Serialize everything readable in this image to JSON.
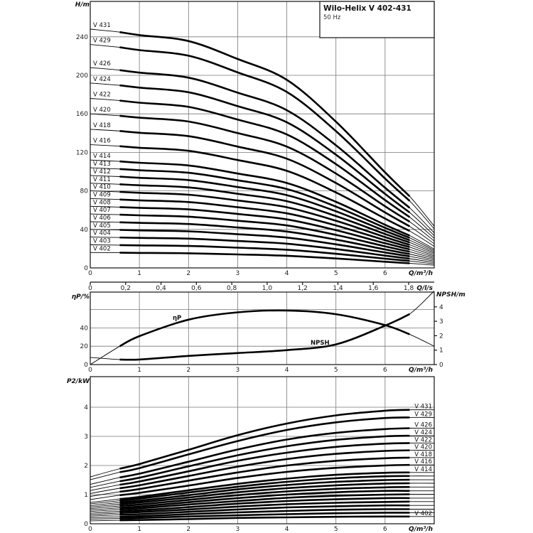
{
  "title": "Wilo-Helix V 402-431",
  "subtitle": "50 Hz",
  "chart_data": [
    {
      "type": "line",
      "ylabel": "H/m",
      "xlabel": "Q/m³/h",
      "xlabel2": "Q/l/s",
      "xlim": [
        0,
        7
      ],
      "ylim": [
        0,
        278
      ],
      "yticks": [
        0,
        40,
        80,
        120,
        160,
        200,
        240
      ],
      "xticks": [
        0,
        1,
        2,
        3,
        4,
        5,
        6
      ],
      "xticks2": [
        "0",
        "0,2",
        "0,4",
        "0,6",
        "0,8",
        "1,0",
        "1,2",
        "1,4",
        "1,6",
        "1,8"
      ],
      "xticks2_values": [
        0,
        0.2,
        0.4,
        0.6,
        0.8,
        1.0,
        1.2,
        1.4,
        1.6,
        1.8
      ],
      "grid": true,
      "operating_range": [
        0.6,
        6.5
      ],
      "x": [
        0,
        0.6,
        1,
        2,
        3,
        4,
        5,
        6,
        6.5,
        7
      ],
      "series": [
        {
          "name": "V 402",
          "values": [
            16,
            15.8,
            15.6,
            15.2,
            14,
            12.6,
            9.8,
            6.4,
            4.8,
            2.8
          ]
        },
        {
          "name": "V 403",
          "values": [
            24,
            23.7,
            23.4,
            22.8,
            21,
            18.9,
            14.7,
            9.6,
            7.2,
            4.2
          ]
        },
        {
          "name": "V 404",
          "values": [
            32,
            31.6,
            31.2,
            30.4,
            28,
            25.2,
            19.6,
            12.8,
            9.6,
            5.6
          ]
        },
        {
          "name": "V 405",
          "values": [
            40,
            39.5,
            39,
            38,
            35,
            31.5,
            24.5,
            16,
            12,
            7
          ]
        },
        {
          "name": "V 406",
          "values": [
            48,
            47.4,
            46.8,
            45.6,
            42,
            37.8,
            29.4,
            19.2,
            14.4,
            8.4
          ]
        },
        {
          "name": "V 407",
          "values": [
            56,
            55.3,
            54.6,
            53.2,
            49,
            44.1,
            34.3,
            22.4,
            16.8,
            9.8
          ]
        },
        {
          "name": "V 408",
          "values": [
            64,
            63.2,
            62.4,
            60.8,
            56,
            50.4,
            39.2,
            25.6,
            19.2,
            11.2
          ]
        },
        {
          "name": "V 409",
          "values": [
            72,
            71.1,
            70.2,
            68.4,
            63,
            56.7,
            44.1,
            28.8,
            21.6,
            12.6
          ]
        },
        {
          "name": "V 410",
          "values": [
            80,
            79,
            78,
            76,
            70,
            63,
            49,
            32,
            24,
            14
          ]
        },
        {
          "name": "V 411",
          "values": [
            88,
            86.9,
            85.8,
            83.6,
            77,
            69.3,
            53.9,
            35.2,
            26.4,
            15.4
          ]
        },
        {
          "name": "V 412",
          "values": [
            96,
            94.8,
            93.6,
            91.2,
            84,
            75.6,
            58.8,
            38.4,
            28.8,
            16.8
          ]
        },
        {
          "name": "V 413",
          "values": [
            104,
            102.7,
            101.4,
            98.8,
            91,
            81.9,
            63.7,
            41.6,
            31.2,
            18.2
          ]
        },
        {
          "name": "V 414",
          "values": [
            112,
            110.6,
            109.2,
            106.4,
            98,
            88.2,
            68.6,
            44.8,
            33.6,
            19.6
          ]
        },
        {
          "name": "V 416",
          "values": [
            128,
            126.4,
            124.8,
            121.6,
            112,
            100.8,
            78.4,
            51.2,
            38.4,
            22.4
          ]
        },
        {
          "name": "V 418",
          "values": [
            144,
            142.2,
            140.4,
            136.8,
            126,
            113.4,
            88.2,
            57.6,
            43.2,
            25.2
          ]
        },
        {
          "name": "V 420",
          "values": [
            160,
            158,
            156,
            152,
            140,
            126,
            98,
            64,
            48,
            28
          ]
        },
        {
          "name": "V 422",
          "values": [
            176,
            173.8,
            171.6,
            167.2,
            154,
            138.6,
            107.8,
            70.4,
            52.8,
            30.8
          ]
        },
        {
          "name": "V 424",
          "values": [
            192,
            189.6,
            187.2,
            182.4,
            168,
            151.2,
            117.6,
            76.8,
            57.6,
            33.6
          ]
        },
        {
          "name": "V 426",
          "values": [
            208,
            205.4,
            202.8,
            197.6,
            182,
            163.8,
            127.4,
            83.2,
            62.4,
            36.4
          ]
        },
        {
          "name": "V 429",
          "values": [
            232,
            229.1,
            226.2,
            220.4,
            203,
            182.7,
            142.1,
            92.8,
            69.6,
            40.6
          ]
        },
        {
          "name": "V 431",
          "values": [
            248,
            244.9,
            241.8,
            235.6,
            217,
            195.3,
            151.9,
            99.2,
            74.4,
            43.4
          ]
        }
      ]
    },
    {
      "type": "line",
      "ylabel": "ηP/%",
      "ylabel_right": "NPSH/m",
      "xlabel": "Q/m³/h",
      "xlim": [
        0,
        7
      ],
      "ylim": [
        0,
        79
      ],
      "ylim_right": [
        0,
        5.1
      ],
      "yticks": [
        0,
        20,
        40
      ],
      "ygrid": [
        20,
        40,
        60
      ],
      "yticks_right": [
        0,
        1,
        2,
        3,
        4
      ],
      "xticks": [
        0,
        1,
        2,
        3,
        4,
        5,
        6
      ],
      "grid": true,
      "operating_range": [
        0.6,
        6.5
      ],
      "x": [
        0,
        0.6,
        1,
        2,
        3,
        4,
        5,
        6,
        6.5,
        7
      ],
      "series": [
        {
          "name": "ηP",
          "axis": "left",
          "values": [
            0,
            20,
            31,
            49,
            57,
            59,
            55,
            43,
            33,
            20
          ]
        },
        {
          "name": "NPSH",
          "axis": "right",
          "values": [
            0.5,
            0.35,
            0.35,
            0.6,
            0.8,
            1.0,
            1.4,
            2.7,
            3.5,
            5.1
          ]
        }
      ]
    },
    {
      "type": "line",
      "ylabel": "P2/kW",
      "xlabel": "Q/m³/h",
      "xlim": [
        0,
        7
      ],
      "ylim": [
        0,
        5.1
      ],
      "yticks": [
        0,
        1,
        2,
        3,
        4
      ],
      "xticks": [
        0,
        1,
        2,
        3,
        4,
        5,
        6
      ],
      "grid": true,
      "operating_range": [
        0.6,
        6.5
      ],
      "x": [
        0,
        0.6,
        1,
        2,
        3,
        4,
        5,
        6,
        6.5,
        7
      ],
      "labeled_series": [
        "V 431",
        "V 429",
        "V 426",
        "V 424",
        "V 422",
        "V 420",
        "V 418",
        "V 416",
        "V 414",
        "V 402"
      ],
      "series": [
        {
          "name": "V 402",
          "values": [
            0.1,
            0.12,
            0.13,
            0.16,
            0.2,
            0.22,
            0.24,
            0.25,
            0.25,
            0.25
          ]
        },
        {
          "name": "V 403",
          "values": [
            0.16,
            0.18,
            0.2,
            0.25,
            0.29,
            0.33,
            0.36,
            0.38,
            0.38,
            0.38
          ]
        },
        {
          "name": "V 404",
          "values": [
            0.21,
            0.24,
            0.26,
            0.33,
            0.39,
            0.44,
            0.48,
            0.5,
            0.5,
            0.5
          ]
        },
        {
          "name": "V 405",
          "values": [
            0.26,
            0.31,
            0.33,
            0.41,
            0.49,
            0.56,
            0.6,
            0.63,
            0.63,
            0.63
          ]
        },
        {
          "name": "V 406",
          "values": [
            0.31,
            0.37,
            0.4,
            0.49,
            0.59,
            0.67,
            0.72,
            0.75,
            0.76,
            0.76
          ]
        },
        {
          "name": "V 407",
          "values": [
            0.36,
            0.43,
            0.46,
            0.57,
            0.69,
            0.78,
            0.84,
            0.88,
            0.88,
            0.88
          ]
        },
        {
          "name": "V 408",
          "values": [
            0.42,
            0.49,
            0.53,
            0.66,
            0.78,
            0.89,
            0.96,
            1.0,
            1.01,
            1.01
          ]
        },
        {
          "name": "V 409",
          "values": [
            0.47,
            0.55,
            0.59,
            0.74,
            0.88,
            1.0,
            1.08,
            1.13,
            1.13,
            1.13
          ]
        },
        {
          "name": "V 410",
          "values": [
            0.52,
            0.61,
            0.66,
            0.82,
            0.98,
            1.11,
            1.2,
            1.25,
            1.26,
            1.26
          ]
        },
        {
          "name": "V 411",
          "values": [
            0.57,
            0.67,
            0.73,
            0.9,
            1.08,
            1.22,
            1.32,
            1.38,
            1.39,
            1.39
          ]
        },
        {
          "name": "V 412",
          "values": [
            0.62,
            0.73,
            0.79,
            0.98,
            1.18,
            1.33,
            1.44,
            1.5,
            1.51,
            1.51
          ]
        },
        {
          "name": "V 413",
          "values": [
            0.68,
            0.79,
            0.86,
            1.07,
            1.27,
            1.44,
            1.56,
            1.63,
            1.64,
            1.64
          ]
        },
        {
          "name": "V 414",
          "values": [
            0.73,
            0.85,
            0.92,
            1.15,
            1.37,
            1.55,
            1.68,
            1.75,
            1.76,
            1.76
          ]
        },
        {
          "name": "V 416",
          "values": [
            0.83,
            0.98,
            1.06,
            1.31,
            1.57,
            1.78,
            1.92,
            2.0,
            2.02,
            2.02
          ]
        },
        {
          "name": "V 418",
          "values": [
            0.94,
            1.1,
            1.19,
            1.48,
            1.76,
            2.0,
            2.16,
            2.25,
            2.27,
            2.27
          ]
        },
        {
          "name": "V 420",
          "values": [
            1.04,
            1.22,
            1.32,
            1.64,
            1.96,
            2.22,
            2.4,
            2.5,
            2.52,
            2.52
          ]
        },
        {
          "name": "V 422",
          "values": [
            1.14,
            1.34,
            1.45,
            1.8,
            2.16,
            2.44,
            2.64,
            2.75,
            2.77,
            2.77
          ]
        },
        {
          "name": "V 424",
          "values": [
            1.25,
            1.46,
            1.58,
            1.97,
            2.35,
            2.66,
            2.88,
            3.0,
            3.02,
            3.02
          ]
        },
        {
          "name": "V 426",
          "values": [
            1.35,
            1.59,
            1.72,
            2.13,
            2.55,
            2.89,
            3.12,
            3.25,
            3.28,
            3.28
          ]
        },
        {
          "name": "V 429",
          "values": [
            1.51,
            1.77,
            1.91,
            2.38,
            2.84,
            3.22,
            3.48,
            3.63,
            3.65,
            3.65
          ]
        },
        {
          "name": "V 431",
          "values": [
            1.61,
            1.89,
            2.05,
            2.54,
            3.04,
            3.44,
            3.72,
            3.88,
            3.91,
            3.91
          ]
        }
      ]
    }
  ]
}
